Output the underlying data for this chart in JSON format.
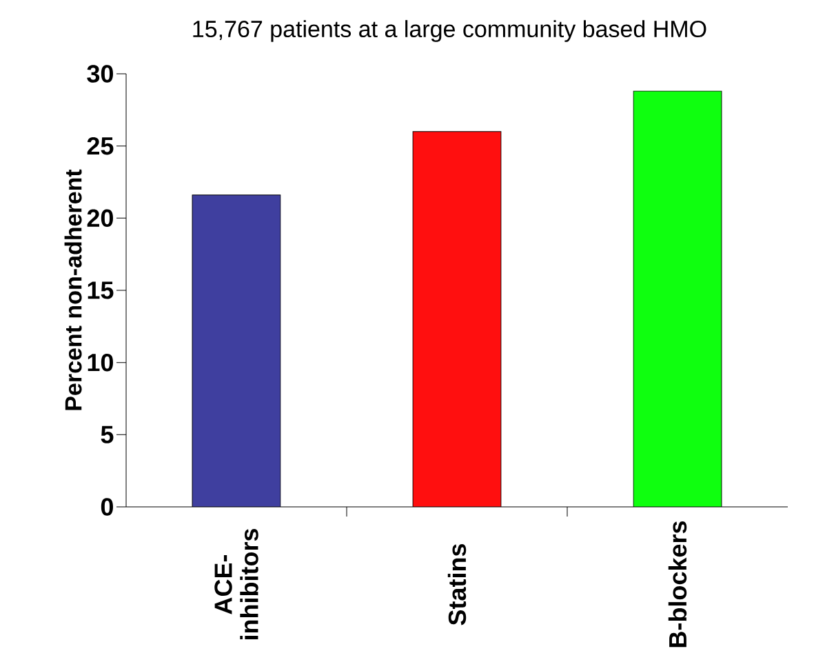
{
  "chart_data": {
    "type": "bar",
    "title": "15,767 patients at a large community based HMO",
    "ylabel": "Percent non-adherent",
    "categories": [
      "ACE-inhibitors",
      "Statins",
      "B-blockers"
    ],
    "values": [
      21.6,
      26.0,
      28.8
    ],
    "colors": [
      "#3f3f9f",
      "#ff0f0f",
      "#0fff0f"
    ],
    "ylim": [
      0,
      30
    ],
    "yticks": [
      0,
      5,
      10,
      15,
      20,
      25,
      30
    ]
  }
}
